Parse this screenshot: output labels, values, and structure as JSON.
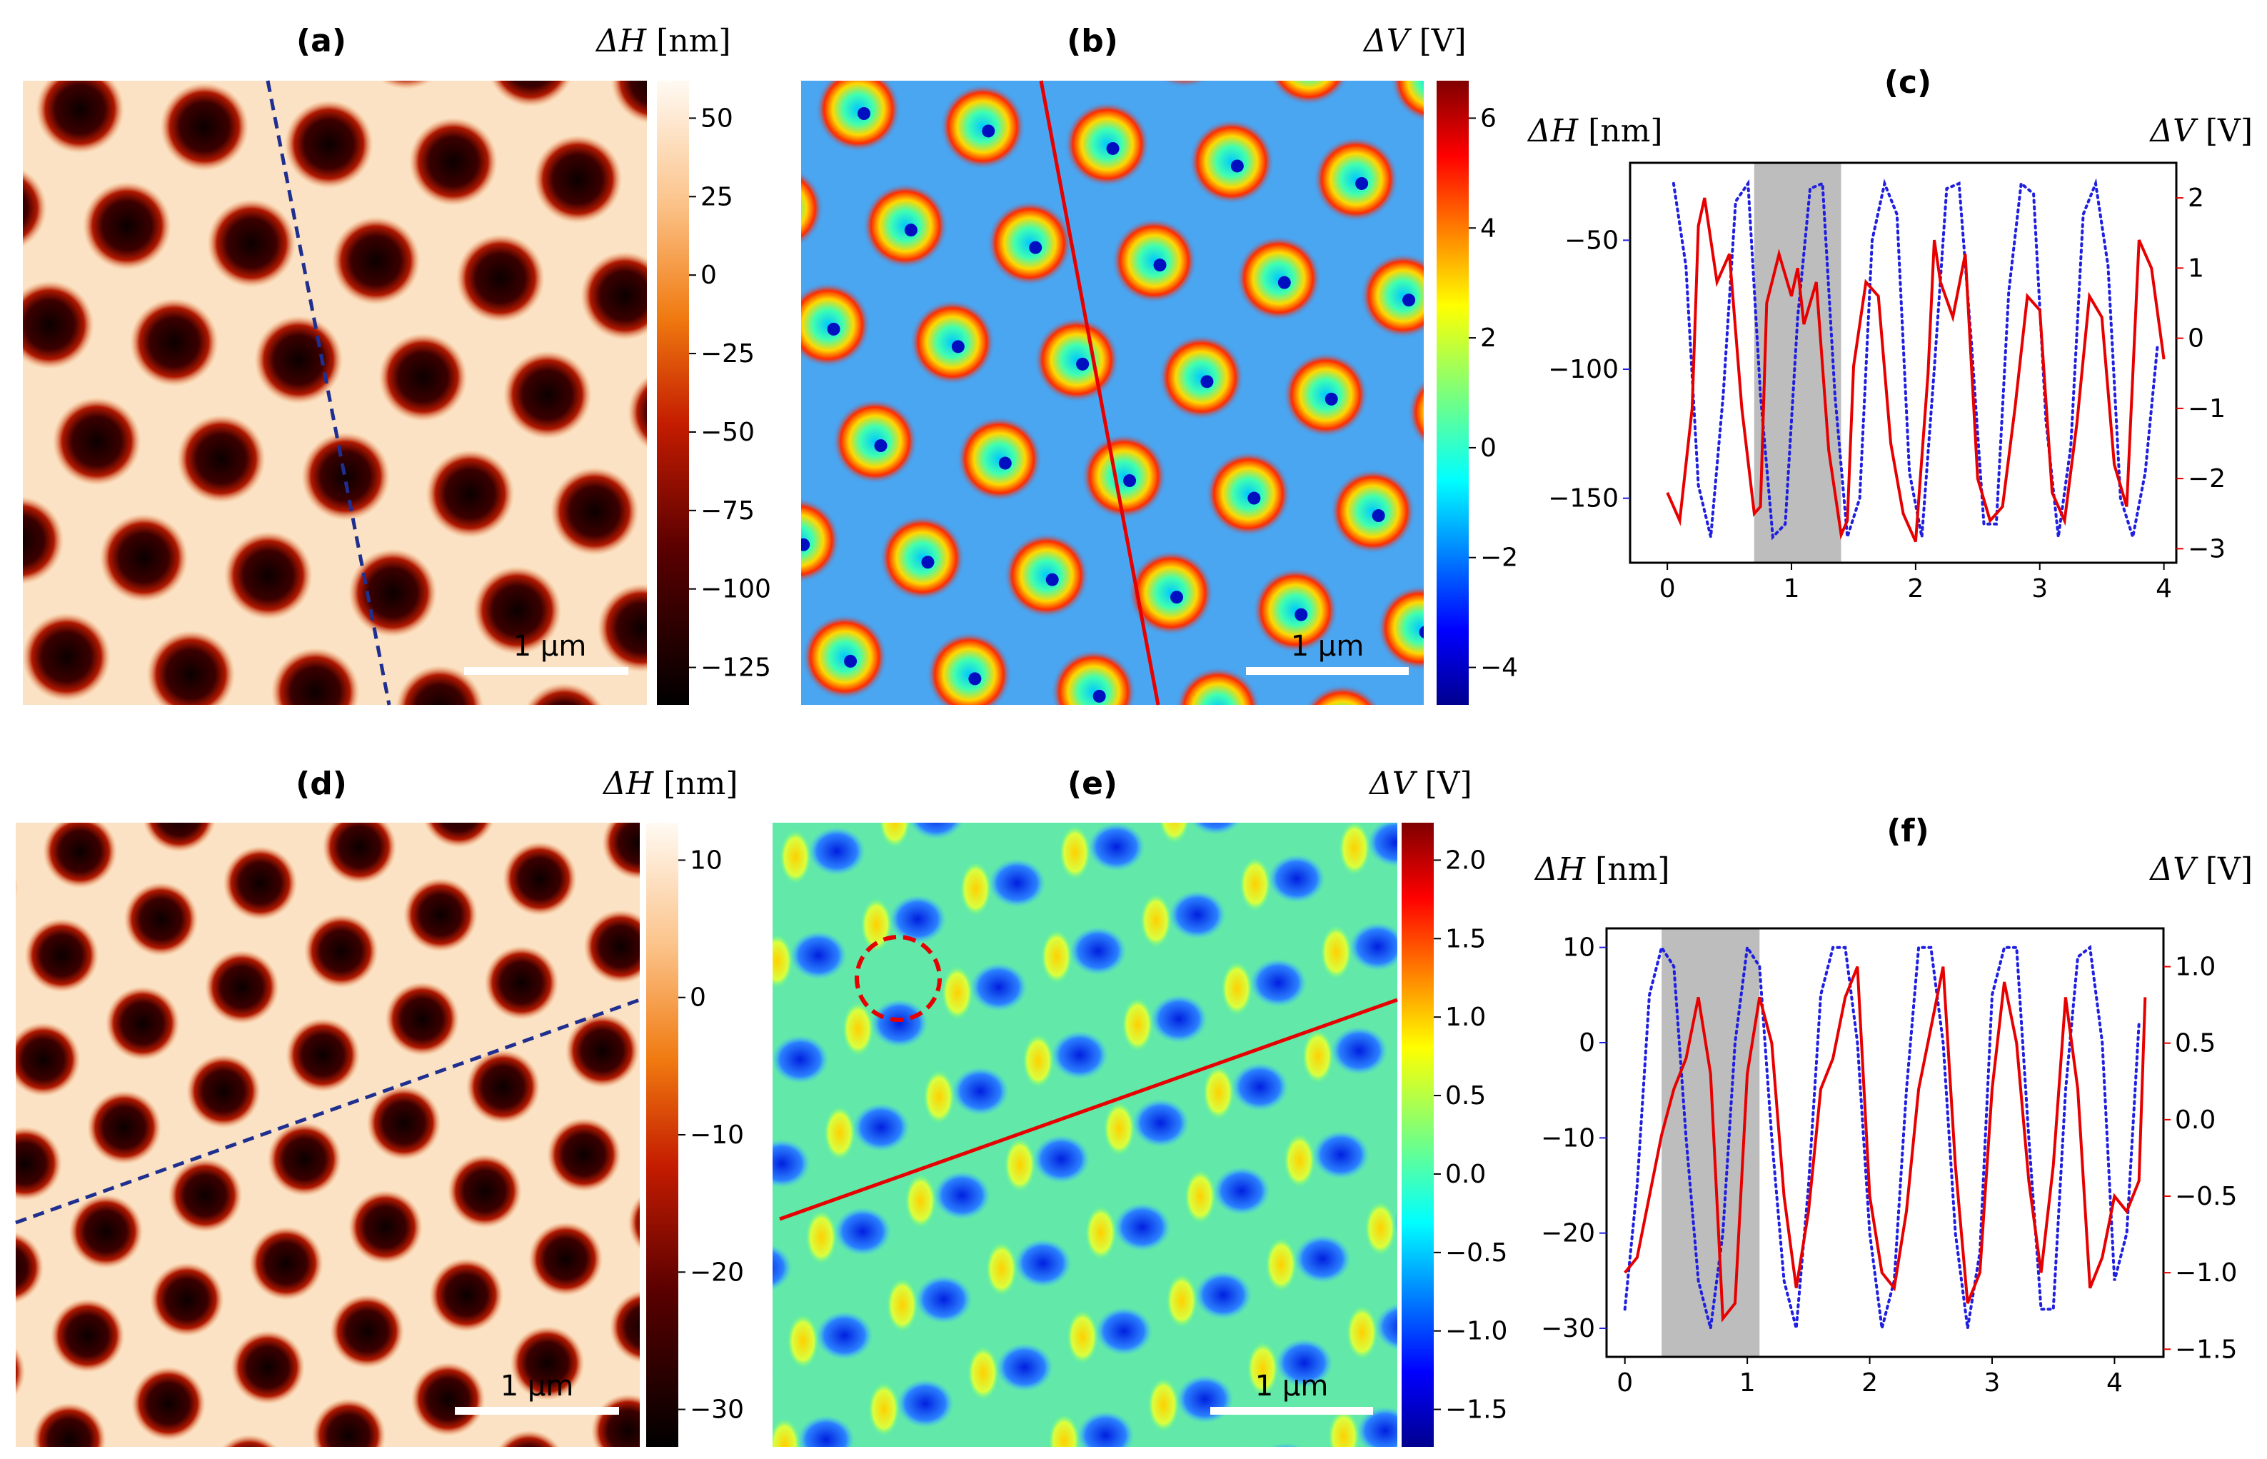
{
  "colors": {
    "height_map_dark": "#1a0000",
    "height_map_light": "#fff7ee",
    "profile_height_line": "#1f1fe0",
    "profile_voltage_line": "#e60000",
    "cut_line_height": "#1f2f8f",
    "cut_line_voltage": "#e60000",
    "shade": "#bdbdbd"
  },
  "panels": {
    "a": {
      "title": "(a)",
      "colorbar_label": "ΔH",
      "colorbar_unit": "[nm]",
      "ticks": [
        "50",
        "25",
        "0",
        "−25",
        "−50",
        "−75",
        "−100",
        "−125"
      ],
      "scale_bar": "1 µm"
    },
    "b": {
      "title": "(b)",
      "colorbar_label": "ΔV",
      "colorbar_unit": "[V]",
      "ticks": [
        "6",
        "4",
        "2",
        "0",
        "−2",
        "−4"
      ],
      "scale_bar": "1 µm"
    },
    "d": {
      "title": "(d)",
      "colorbar_label": "ΔH",
      "colorbar_unit": "[nm]",
      "ticks": [
        "10",
        "0",
        "−10",
        "−20",
        "−30"
      ],
      "scale_bar": "1 µm"
    },
    "e": {
      "title": "(e)",
      "colorbar_label": "ΔV",
      "colorbar_unit": "[V]",
      "ticks": [
        "2.0",
        "1.5",
        "1.0",
        "0.5",
        "0.0",
        "−0.5",
        "−1.0",
        "−1.5"
      ],
      "scale_bar": "1 µm"
    }
  },
  "chart_data": [
    {
      "panel": "(c)",
      "type": "line",
      "left_label": "ΔH",
      "left_unit": "[nm]",
      "right_label": "ΔV",
      "right_unit": "[V]",
      "xlim": [
        -0.3,
        4.1
      ],
      "y_left_lim": [
        -175,
        -20
      ],
      "y_right_lim": [
        -3.2,
        2.5
      ],
      "x_ticks": [
        "0",
        "1",
        "2",
        "3",
        "4"
      ],
      "x_tick_values": [
        0,
        1,
        2,
        3,
        4
      ],
      "y_left_ticks": [
        "−50",
        "−100",
        "−150"
      ],
      "y_left_tick_values": [
        -50,
        -100,
        -150
      ],
      "y_right_ticks": [
        "2",
        "1",
        "0",
        "−1",
        "−2",
        "−3"
      ],
      "y_right_tick_values": [
        2,
        1,
        0,
        -1,
        -2,
        -3
      ],
      "shaded_x": [
        0.7,
        1.4
      ],
      "series": [
        {
          "name": "ΔH",
          "axis": "left",
          "style": "dotted",
          "x": [
            0.05,
            0.15,
            0.25,
            0.35,
            0.45,
            0.55,
            0.65,
            0.75,
            0.85,
            0.95,
            1.05,
            1.15,
            1.25,
            1.35,
            1.45,
            1.55,
            1.65,
            1.75,
            1.85,
            1.95,
            2.05,
            2.15,
            2.25,
            2.35,
            2.45,
            2.55,
            2.65,
            2.75,
            2.85,
            2.95,
            3.05,
            3.15,
            3.25,
            3.35,
            3.45,
            3.55,
            3.65,
            3.75,
            3.85,
            3.95
          ],
          "values": [
            -28,
            -60,
            -145,
            -165,
            -110,
            -35,
            -28,
            -110,
            -165,
            -160,
            -80,
            -30,
            -28,
            -110,
            -165,
            -150,
            -50,
            -28,
            -40,
            -140,
            -165,
            -100,
            -30,
            -28,
            -90,
            -160,
            -160,
            -70,
            -28,
            -32,
            -120,
            -165,
            -130,
            -40,
            -28,
            -60,
            -150,
            -165,
            -140,
            -90
          ]
        },
        {
          "name": "ΔV",
          "axis": "right",
          "style": "solid",
          "x": [
            0.0,
            0.1,
            0.2,
            0.25,
            0.3,
            0.4,
            0.5,
            0.6,
            0.7,
            0.75,
            0.8,
            0.9,
            1.0,
            1.05,
            1.1,
            1.2,
            1.3,
            1.4,
            1.45,
            1.5,
            1.6,
            1.7,
            1.8,
            1.9,
            2.0,
            2.1,
            2.15,
            2.2,
            2.3,
            2.4,
            2.5,
            2.6,
            2.7,
            2.8,
            2.9,
            3.0,
            3.1,
            3.2,
            3.3,
            3.4,
            3.5,
            3.6,
            3.7,
            3.8,
            3.9,
            4.0
          ],
          "values": [
            -2.2,
            -2.6,
            -1.0,
            1.6,
            2.0,
            0.8,
            1.2,
            -1.0,
            -2.5,
            -2.4,
            0.5,
            1.2,
            0.6,
            1.0,
            0.2,
            0.8,
            -1.6,
            -2.8,
            -2.6,
            -0.4,
            0.8,
            0.6,
            -1.5,
            -2.5,
            -2.9,
            -0.5,
            1.4,
            0.8,
            0.3,
            1.2,
            -2.0,
            -2.6,
            -2.4,
            -1.0,
            0.6,
            0.4,
            -2.2,
            -2.6,
            -1.2,
            0.6,
            0.3,
            -1.8,
            -2.4,
            1.4,
            1.0,
            -0.3
          ]
        }
      ]
    },
    {
      "panel": "(f)",
      "type": "line",
      "left_label": "ΔH",
      "left_unit": "[nm]",
      "right_label": "ΔV",
      "right_unit": "[V]",
      "xlim": [
        -0.15,
        4.4
      ],
      "y_left_lim": [
        -33,
        12
      ],
      "y_right_lim": [
        -1.55,
        1.25
      ],
      "x_ticks": [
        "0",
        "1",
        "2",
        "3",
        "4"
      ],
      "x_tick_values": [
        0,
        1,
        2,
        3,
        4
      ],
      "y_left_ticks": [
        "10",
        "0",
        "−10",
        "−20",
        "−30"
      ],
      "y_left_tick_values": [
        10,
        0,
        -10,
        -20,
        -30
      ],
      "y_right_ticks": [
        "1.0",
        "0.5",
        "0.0",
        "−0.5",
        "−1.0",
        "−1.5"
      ],
      "y_right_tick_values": [
        1.0,
        0.5,
        0.0,
        -0.5,
        -1.0,
        -1.5
      ],
      "shaded_x": [
        0.3,
        1.1
      ],
      "series": [
        {
          "name": "ΔH",
          "axis": "left",
          "style": "dotted",
          "x": [
            0.0,
            0.1,
            0.2,
            0.3,
            0.4,
            0.5,
            0.6,
            0.7,
            0.8,
            0.9,
            1.0,
            1.1,
            1.2,
            1.3,
            1.4,
            1.5,
            1.6,
            1.7,
            1.8,
            1.9,
            2.0,
            2.1,
            2.2,
            2.3,
            2.4,
            2.5,
            2.6,
            2.7,
            2.8,
            2.9,
            3.0,
            3.1,
            3.2,
            3.3,
            3.4,
            3.5,
            3.6,
            3.7,
            3.8,
            3.9,
            4.0,
            4.1,
            4.2
          ],
          "values": [
            -28,
            -15,
            5,
            10,
            8,
            -10,
            -25,
            -30,
            -20,
            0,
            10,
            8,
            -10,
            -25,
            -30,
            -15,
            5,
            10,
            10,
            0,
            -20,
            -30,
            -25,
            -5,
            10,
            10,
            0,
            -20,
            -30,
            -22,
            5,
            10,
            10,
            -10,
            -28,
            -28,
            -5,
            9,
            10,
            0,
            -25,
            -20,
            2
          ]
        },
        {
          "name": "ΔV",
          "axis": "right",
          "style": "solid",
          "x": [
            0.0,
            0.1,
            0.2,
            0.3,
            0.4,
            0.5,
            0.6,
            0.7,
            0.8,
            0.9,
            1.0,
            1.1,
            1.2,
            1.3,
            1.4,
            1.5,
            1.6,
            1.7,
            1.8,
            1.9,
            2.0,
            2.1,
            2.2,
            2.3,
            2.4,
            2.5,
            2.6,
            2.7,
            2.8,
            2.9,
            3.0,
            3.1,
            3.2,
            3.3,
            3.4,
            3.5,
            3.6,
            3.7,
            3.8,
            3.9,
            4.0,
            4.1,
            4.2,
            4.25
          ],
          "values": [
            -1.0,
            -0.9,
            -0.5,
            -0.1,
            0.2,
            0.4,
            0.8,
            0.3,
            -1.3,
            -1.2,
            0.3,
            0.8,
            0.5,
            -0.5,
            -1.1,
            -0.6,
            0.2,
            0.4,
            0.8,
            1.0,
            -0.5,
            -1.0,
            -1.1,
            -0.6,
            0.2,
            0.6,
            1.0,
            -0.3,
            -1.2,
            -1.0,
            0.2,
            0.9,
            0.5,
            -0.4,
            -1.0,
            -0.3,
            0.8,
            0.2,
            -1.1,
            -0.9,
            -0.5,
            -0.6,
            -0.4,
            0.8
          ]
        }
      ]
    }
  ]
}
